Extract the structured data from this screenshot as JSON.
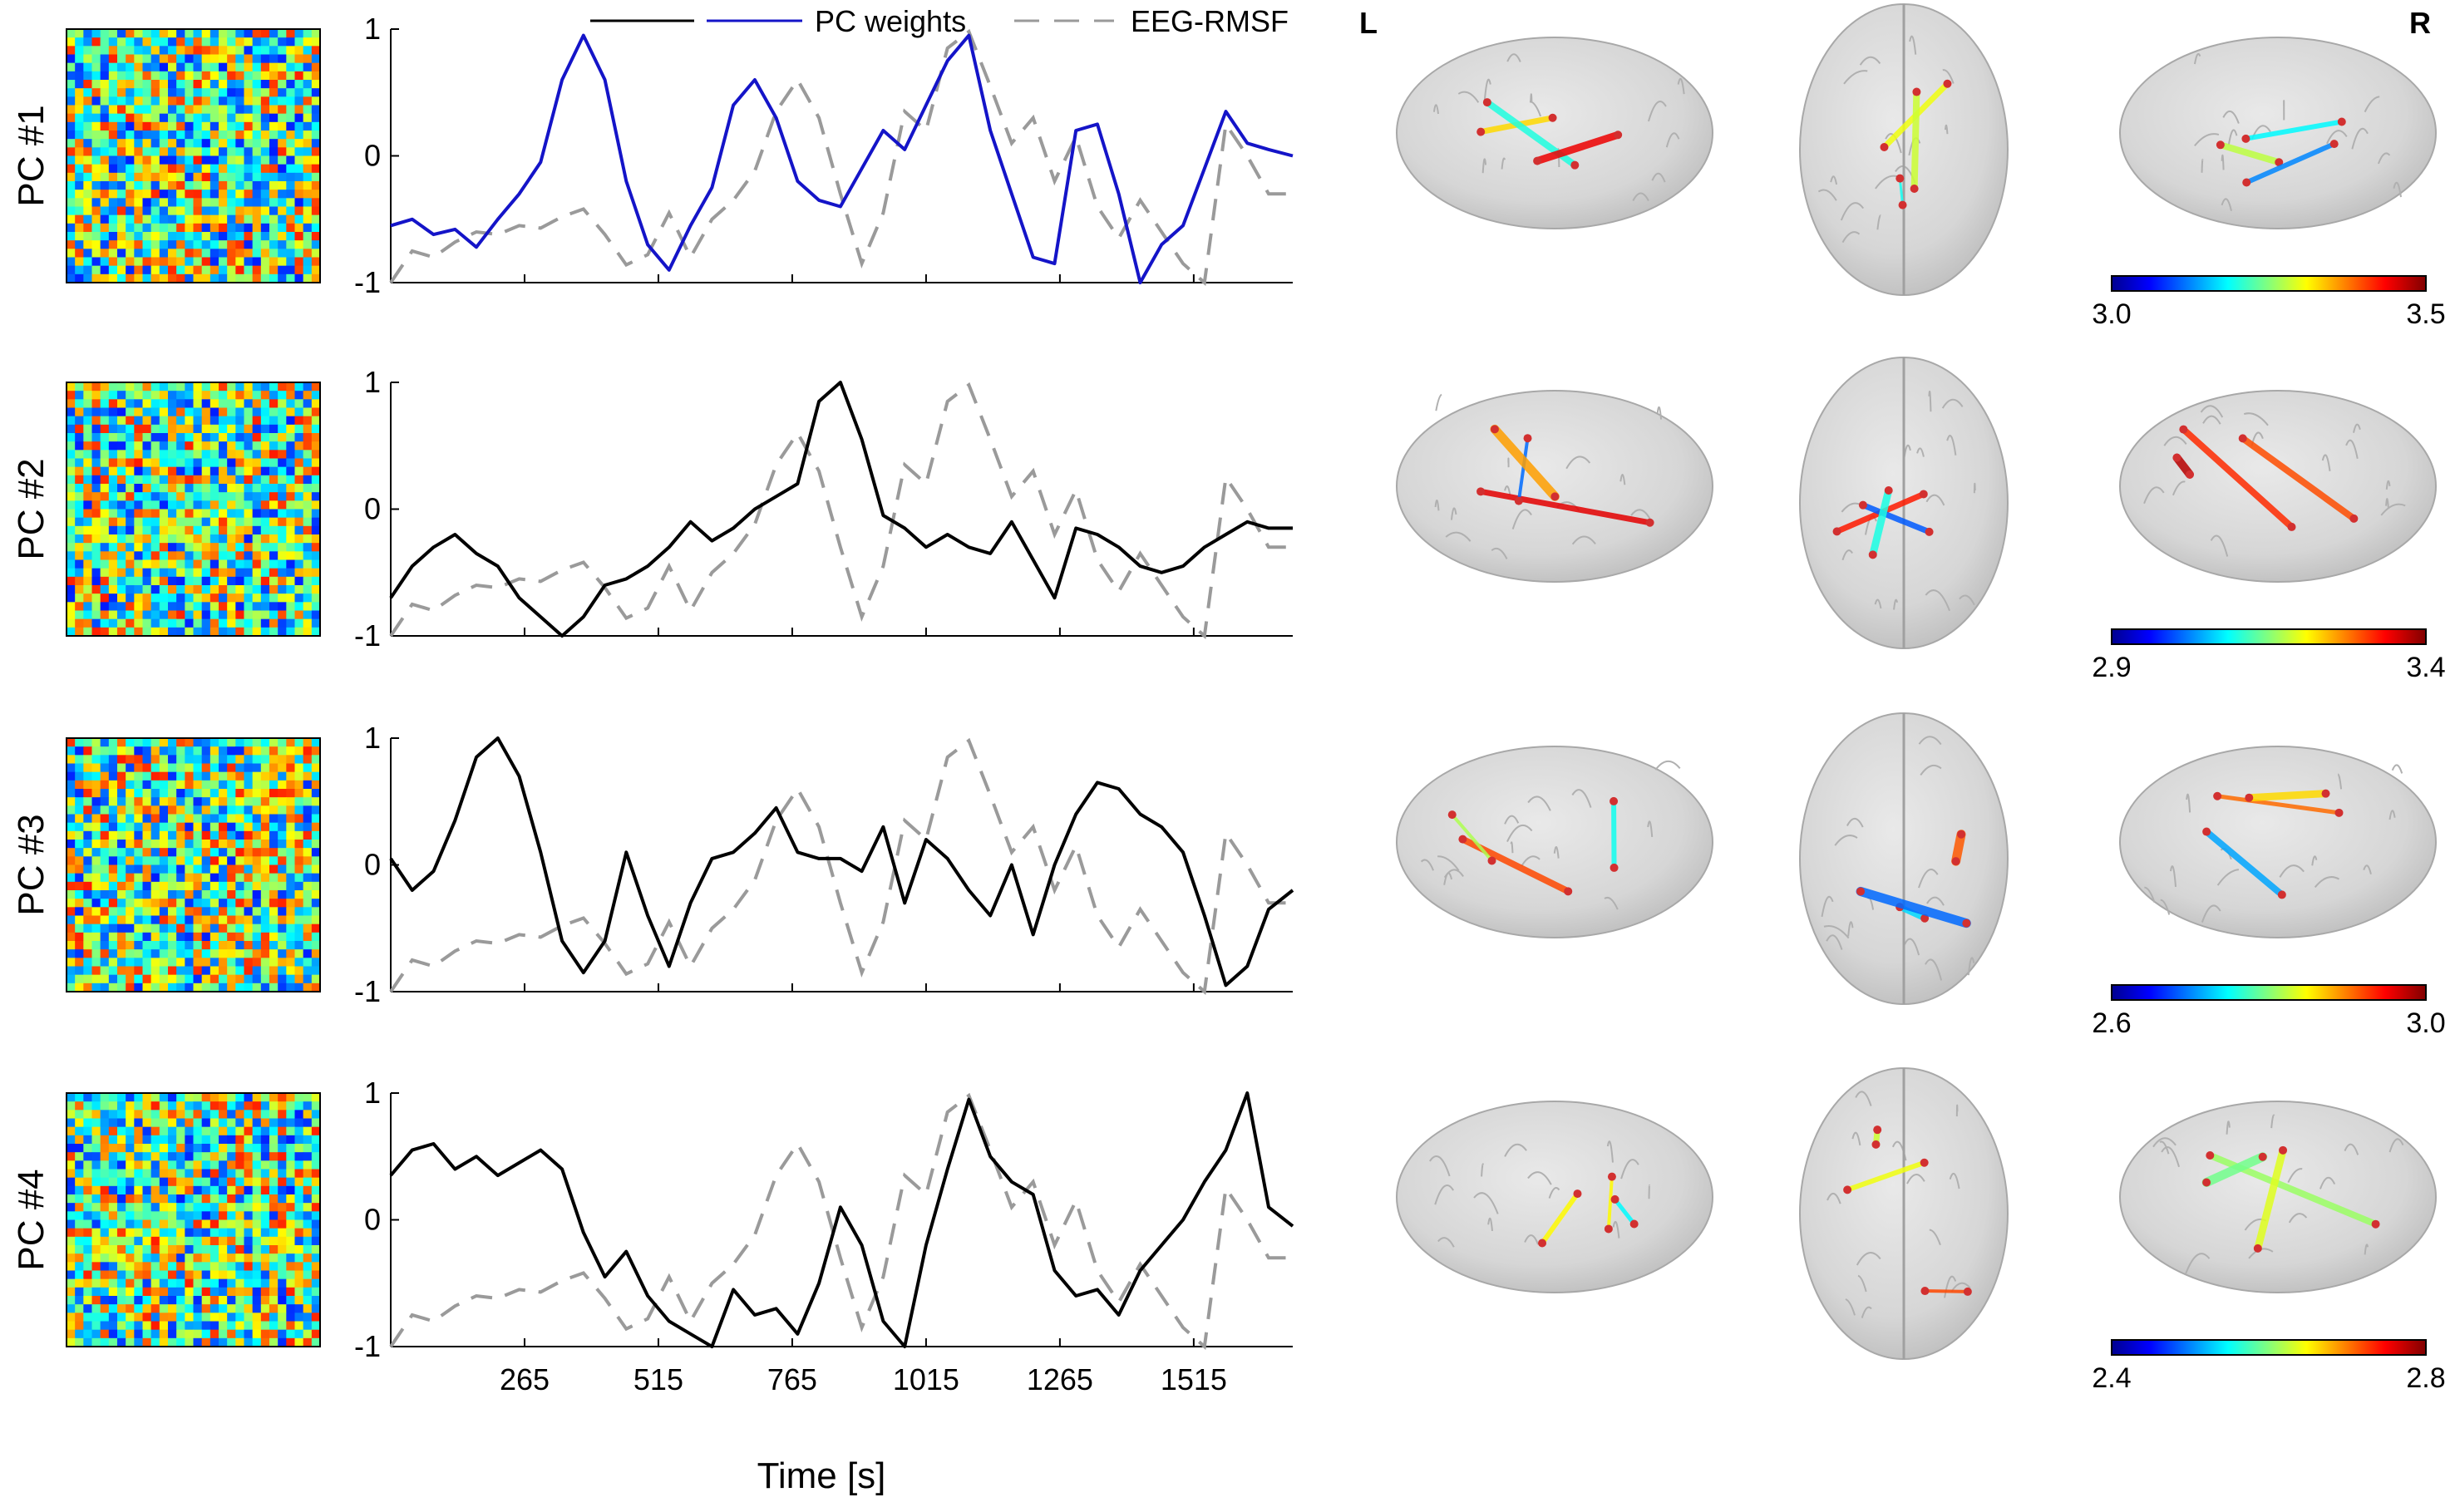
{
  "figure": {
    "hemisphere_left": "L",
    "hemisphere_right": "R",
    "legend": {
      "pc_weights": "PC weights",
      "eeg_rmsf": "EEG-RMSF",
      "pc_colors": [
        "#000000",
        "#1414c8"
      ],
      "eeg_color": "#9a9a9a"
    }
  },
  "chart_data": {
    "type": "line",
    "xlabel": "Time [s]",
    "xticks": [
      265,
      515,
      765,
      1015,
      1265,
      1515
    ],
    "xlim": [
      15,
      1700
    ],
    "ylim": [
      -1,
      1
    ],
    "yticks": [
      -1,
      0,
      1
    ],
    "eeg_rmsf": {
      "name": "EEG-RMSF",
      "x": [
        15,
        55,
        95,
        135,
        175,
        215,
        255,
        295,
        335,
        375,
        415,
        455,
        495,
        535,
        575,
        615,
        655,
        695,
        735,
        775,
        815,
        855,
        895,
        935,
        975,
        1015,
        1055,
        1095,
        1135,
        1175,
        1215,
        1255,
        1295,
        1335,
        1375,
        1415,
        1455,
        1495,
        1535,
        1575,
        1615,
        1655,
        1700
      ],
      "y": [
        -1.0,
        -0.75,
        -0.8,
        -0.68,
        -0.6,
        -0.62,
        -0.55,
        -0.57,
        -0.48,
        -0.42,
        -0.62,
        -0.86,
        -0.78,
        -0.45,
        -0.8,
        -0.5,
        -0.35,
        -0.12,
        0.35,
        0.6,
        0.3,
        -0.3,
        -0.85,
        -0.45,
        0.35,
        0.2,
        0.85,
        0.98,
        0.55,
        0.1,
        0.3,
        -0.2,
        0.15,
        -0.4,
        -0.65,
        -0.35,
        -0.6,
        -0.85,
        -1.0,
        0.25,
        0.0,
        -0.3,
        -0.3
      ]
    },
    "panels": [
      {
        "label": "PC #1",
        "color": "#1414c8",
        "colorbar_min": "3.0",
        "colorbar_max": "3.5",
        "x": [
          15,
          55,
          95,
          135,
          175,
          215,
          255,
          295,
          335,
          375,
          415,
          455,
          495,
          535,
          575,
          615,
          655,
          695,
          735,
          775,
          815,
          855,
          895,
          935,
          975,
          1015,
          1055,
          1095,
          1135,
          1175,
          1215,
          1255,
          1295,
          1335,
          1375,
          1415,
          1455,
          1495,
          1535,
          1575,
          1615,
          1655,
          1700
        ],
        "y": [
          -0.55,
          -0.5,
          -0.62,
          -0.58,
          -0.72,
          -0.5,
          -0.3,
          -0.05,
          0.6,
          0.95,
          0.6,
          -0.2,
          -0.7,
          -0.9,
          -0.55,
          -0.25,
          0.4,
          0.6,
          0.3,
          -0.2,
          -0.35,
          -0.4,
          -0.1,
          0.2,
          0.05,
          0.4,
          0.75,
          0.95,
          0.2,
          -0.3,
          -0.8,
          -0.85,
          0.2,
          0.25,
          -0.3,
          -1.0,
          -0.7,
          -0.55,
          -0.1,
          0.35,
          0.1,
          0.05,
          0.0
        ]
      },
      {
        "label": "PC #2",
        "color": "#000000",
        "colorbar_min": "2.9",
        "colorbar_max": "3.4",
        "x": [
          15,
          55,
          95,
          135,
          175,
          215,
          255,
          295,
          335,
          375,
          415,
          455,
          495,
          535,
          575,
          615,
          655,
          695,
          735,
          775,
          815,
          855,
          895,
          935,
          975,
          1015,
          1055,
          1095,
          1135,
          1175,
          1215,
          1255,
          1295,
          1335,
          1375,
          1415,
          1455,
          1495,
          1535,
          1575,
          1615,
          1655,
          1700
        ],
        "y": [
          -0.7,
          -0.45,
          -0.3,
          -0.2,
          -0.35,
          -0.45,
          -0.7,
          -0.85,
          -1.0,
          -0.85,
          -0.6,
          -0.55,
          -0.45,
          -0.3,
          -0.1,
          -0.25,
          -0.15,
          0.0,
          0.1,
          0.2,
          0.85,
          1.0,
          0.55,
          -0.05,
          -0.15,
          -0.3,
          -0.2,
          -0.3,
          -0.35,
          -0.1,
          -0.4,
          -0.7,
          -0.15,
          -0.2,
          -0.3,
          -0.45,
          -0.5,
          -0.45,
          -0.3,
          -0.2,
          -0.1,
          -0.15,
          -0.15
        ]
      },
      {
        "label": "PC #3",
        "color": "#000000",
        "colorbar_min": "2.6",
        "colorbar_max": "3.0",
        "x": [
          15,
          55,
          95,
          135,
          175,
          215,
          255,
          295,
          335,
          375,
          415,
          455,
          495,
          535,
          575,
          615,
          655,
          695,
          735,
          775,
          815,
          855,
          895,
          935,
          975,
          1015,
          1055,
          1095,
          1135,
          1175,
          1215,
          1255,
          1295,
          1335,
          1375,
          1415,
          1455,
          1495,
          1535,
          1575,
          1615,
          1655,
          1700
        ],
        "y": [
          0.05,
          -0.2,
          -0.05,
          0.35,
          0.85,
          1.0,
          0.7,
          0.1,
          -0.6,
          -0.85,
          -0.6,
          0.1,
          -0.4,
          -0.8,
          -0.3,
          0.05,
          0.1,
          0.25,
          0.45,
          0.1,
          0.05,
          0.05,
          -0.05,
          0.3,
          -0.3,
          0.2,
          0.05,
          -0.2,
          -0.4,
          0.0,
          -0.55,
          0.0,
          0.4,
          0.65,
          0.6,
          0.4,
          0.3,
          0.1,
          -0.4,
          -0.95,
          -0.8,
          -0.35,
          -0.2
        ]
      },
      {
        "label": "PC #4",
        "color": "#000000",
        "colorbar_min": "2.4",
        "colorbar_max": "2.8",
        "x": [
          15,
          55,
          95,
          135,
          175,
          215,
          255,
          295,
          335,
          375,
          415,
          455,
          495,
          535,
          575,
          615,
          655,
          695,
          735,
          775,
          815,
          855,
          895,
          935,
          975,
          1015,
          1055,
          1095,
          1135,
          1175,
          1215,
          1255,
          1295,
          1335,
          1375,
          1415,
          1455,
          1495,
          1535,
          1575,
          1615,
          1655,
          1700
        ],
        "y": [
          0.35,
          0.55,
          0.6,
          0.4,
          0.5,
          0.35,
          0.45,
          0.55,
          0.4,
          -0.1,
          -0.45,
          -0.25,
          -0.6,
          -0.8,
          -0.9,
          -1.0,
          -0.55,
          -0.75,
          -0.7,
          -0.9,
          -0.5,
          0.1,
          -0.2,
          -0.8,
          -1.0,
          -0.2,
          0.4,
          0.95,
          0.5,
          0.3,
          0.2,
          -0.4,
          -0.6,
          -0.55,
          -0.75,
          -0.4,
          -0.2,
          0.0,
          0.3,
          0.55,
          1.0,
          0.1,
          -0.05
        ]
      }
    ]
  }
}
